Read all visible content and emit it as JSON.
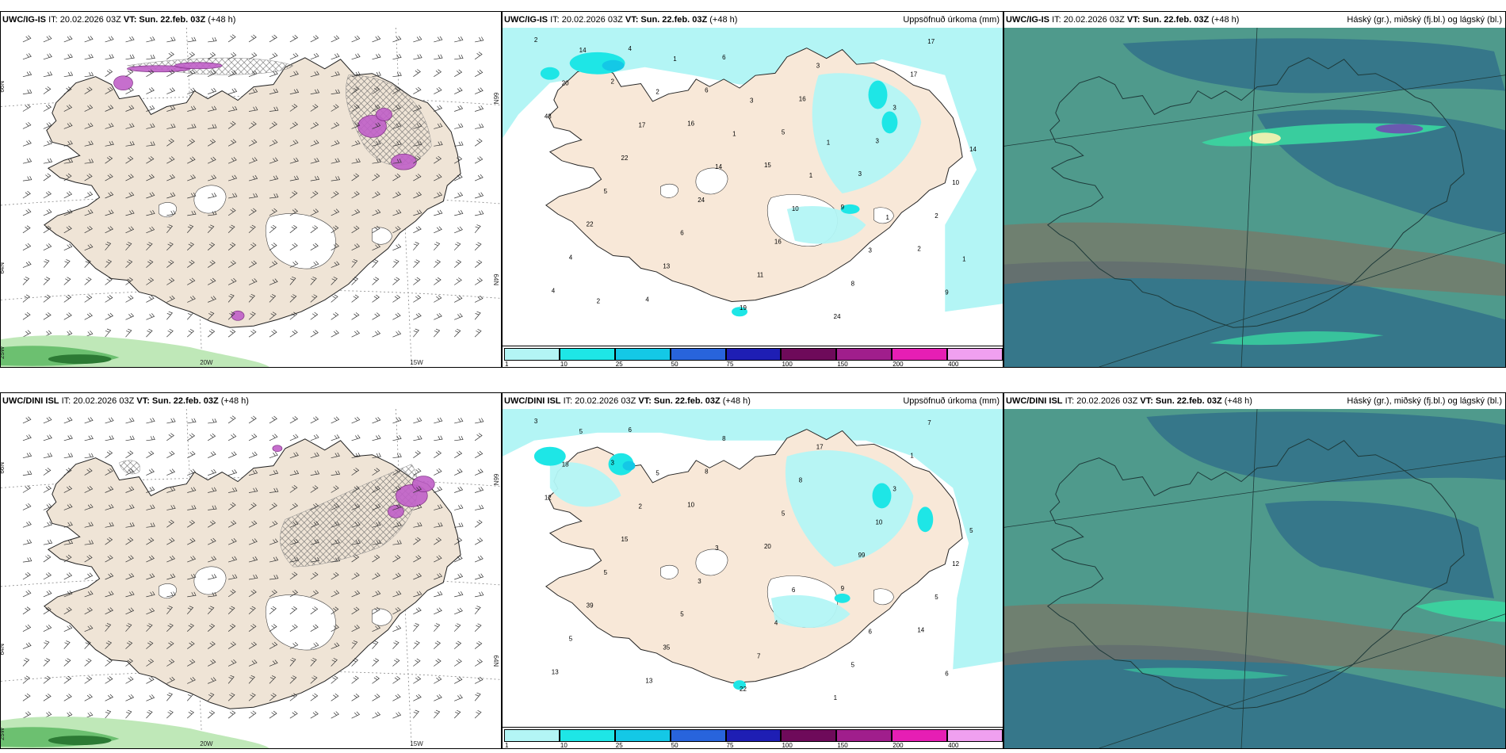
{
  "panels": [
    {
      "id": "p1",
      "model": "UWC/IG-IS",
      "it": "IT: 20.02.2026 03Z",
      "vt": "VT: Sun. 22.feb. 03Z",
      "lead": "(+48 h)",
      "right": "",
      "type": "wind"
    },
    {
      "id": "p2",
      "model": "UWC/IG-IS",
      "it": "IT: 20.02.2026 03Z",
      "vt": "VT: Sun. 22.feb. 03Z",
      "lead": "(+48 h)",
      "right": "Uppsöfnuð úrkoma (mm)",
      "type": "precip"
    },
    {
      "id": "p3",
      "model": "UWC/IG-IS",
      "it": "IT: 20.02.2026 03Z",
      "vt": "VT: Sun. 22.feb. 03Z",
      "lead": "(+48 h)",
      "right": "Háský (gr.), miðský (fj.bl.) og lágský (bl.)",
      "type": "cloud"
    },
    {
      "id": "p4",
      "model": "UWC/DINI ISL",
      "it": "IT: 20.02.2026 03Z",
      "vt": "VT: Sun. 22.feb. 03Z",
      "lead": "(+48 h)",
      "right": "",
      "type": "wind"
    },
    {
      "id": "p5",
      "model": "UWC/DINI ISL",
      "it": "IT: 20.02.2026 03Z",
      "vt": "VT: Sun. 22.feb. 03Z",
      "lead": "(+48 h)",
      "right": "Uppsöfnuð úrkoma (mm)",
      "type": "precip"
    },
    {
      "id": "p6",
      "model": "UWC/DINI ISL",
      "it": "IT: 20.02.2026 03Z",
      "vt": "VT: Sun. 22.feb. 03Z",
      "lead": "(+48 h)",
      "right": "Háský (gr.), miðský (fj.bl.) og lágský (bl.)",
      "type": "cloud"
    }
  ],
  "axis_labels": {
    "lat66": "66N",
    "lat64": "64N",
    "lon25": "25W",
    "lon20": "20W",
    "lon15": "15W"
  },
  "colorbar": {
    "ticks": [
      "1",
      "10",
      "25",
      "50",
      "75",
      "100",
      "150",
      "200",
      "400"
    ],
    "colors": [
      "#b3f5f5",
      "#1ee6e6",
      "#14c8e6",
      "#2864dc",
      "#1e1eb4",
      "#6e0a5a",
      "#a01e8c",
      "#e61eb4",
      "#f0a0f0"
    ]
  },
  "precip_numbers_top": [
    "2",
    "2",
    "16",
    "15",
    "9",
    "2",
    "4",
    "4",
    "6",
    "5",
    "3",
    "2",
    "4",
    "4",
    "6",
    "16",
    "3",
    "10",
    "22",
    "13",
    "19",
    "3",
    "3",
    "14",
    "5",
    "6",
    "11",
    "24",
    "17",
    "43",
    "22",
    "24",
    "16",
    "8",
    "17",
    "20",
    "17",
    "14",
    "10",
    "3",
    "9",
    "14",
    "2",
    "1",
    "1",
    "1",
    "1",
    "2",
    "1",
    "3",
    "1"
  ],
  "precip_numbers_bottom": [
    "3",
    "3",
    "10",
    "20",
    "9",
    "14",
    "13",
    "6",
    "8",
    "5",
    "99",
    "5",
    "5",
    "13",
    "8",
    "8",
    "10",
    "12",
    "39",
    "35",
    "22",
    "17",
    "3",
    "5",
    "5",
    "5",
    "7",
    "1",
    "1",
    "12",
    "15",
    "3",
    "4",
    "5",
    "7",
    "18",
    "2",
    "3",
    "6",
    "6",
    "6",
    "5",
    "5"
  ],
  "legend_colors": {
    "land": "#efe4d6",
    "coast": "#000000",
    "cloud_base": "#5a9a8c",
    "sea_bg": "#ffffff"
  }
}
